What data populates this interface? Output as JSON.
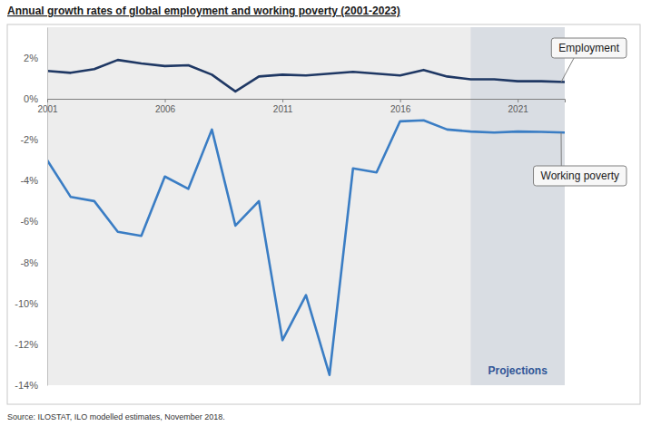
{
  "chart_data": {
    "type": "line",
    "title": "Annual growth rates of global employment and working poverty (2001-2023)",
    "source": "Source: ILOSTAT, ILO modelled estimates, November 2018.",
    "x": [
      2001,
      2002,
      2003,
      2004,
      2005,
      2006,
      2007,
      2008,
      2009,
      2010,
      2011,
      2012,
      2013,
      2014,
      2015,
      2016,
      2017,
      2018,
      2019,
      2020,
      2021,
      2022,
      2023
    ],
    "series": [
      {
        "name": "Employment",
        "color": "#1f3864",
        "values": [
          1.36,
          1.27,
          1.45,
          1.9,
          1.73,
          1.6,
          1.64,
          1.18,
          0.36,
          1.09,
          1.18,
          1.14,
          1.23,
          1.32,
          1.23,
          1.14,
          1.41,
          1.09,
          0.95,
          0.95,
          0.86,
          0.86,
          0.82
        ]
      },
      {
        "name": "Working poverty",
        "color": "#3a7dc4",
        "values": [
          -3.0,
          -4.8,
          -5.0,
          -6.5,
          -6.7,
          -3.8,
          -4.4,
          -1.5,
          -6.2,
          -5.0,
          -11.8,
          -9.6,
          -13.5,
          -3.4,
          -3.6,
          -1.1,
          -1.05,
          -1.5,
          -1.6,
          -1.65,
          -1.6,
          -1.62,
          -1.65
        ]
      }
    ],
    "xlim": [
      2001,
      2023
    ],
    "xticks": [
      2001,
      2006,
      2011,
      2016,
      2021
    ],
    "ylim": [
      -14,
      3.5
    ],
    "yticks": [
      {
        "value": 2,
        "label": "2%"
      },
      {
        "value": 0,
        "label": "0%"
      },
      {
        "value": -2,
        "label": "-2%"
      },
      {
        "value": -4,
        "label": "-4%"
      },
      {
        "value": -6,
        "label": "-6%"
      },
      {
        "value": -8,
        "label": "-8%"
      },
      {
        "value": -10,
        "label": "-10%"
      },
      {
        "value": -12,
        "label": "-12%"
      },
      {
        "value": -14,
        "label": "-14%"
      }
    ],
    "grid": false,
    "annotations": [
      {
        "text": "Projections",
        "x_from": 2019,
        "x_to": 2023
      }
    ]
  }
}
